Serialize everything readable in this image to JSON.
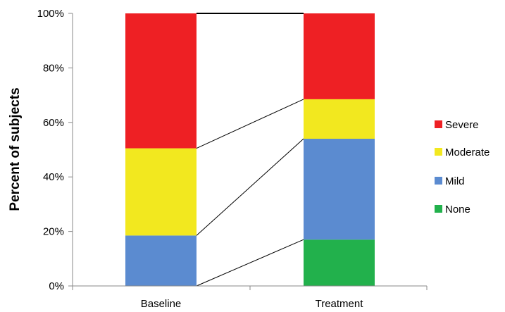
{
  "chart_data": {
    "type": "bar",
    "stacked": true,
    "title": "",
    "xlabel": "",
    "ylabel": "Percent of subjects",
    "ylim": [
      0,
      100
    ],
    "yticks": [
      "0%",
      "20%",
      "40%",
      "60%",
      "80%",
      "100%"
    ],
    "categories": [
      "Baseline",
      "Treatment"
    ],
    "series": [
      {
        "name": "None",
        "color": "#22b14c",
        "values": [
          0,
          17
        ]
      },
      {
        "name": "Mild",
        "color": "#5b8bd0",
        "values": [
          18.5,
          37
        ]
      },
      {
        "name": "Moderate",
        "color": "#f2e81f",
        "values": [
          32,
          14.5
        ]
      },
      {
        "name": "Severe",
        "color": "#ee2024",
        "values": [
          49.5,
          31.5
        ]
      }
    ],
    "legend_order": [
      "Severe",
      "Moderate",
      "Mild",
      "None"
    ],
    "legend_position": "right",
    "grid": false,
    "connector_lines": true
  }
}
